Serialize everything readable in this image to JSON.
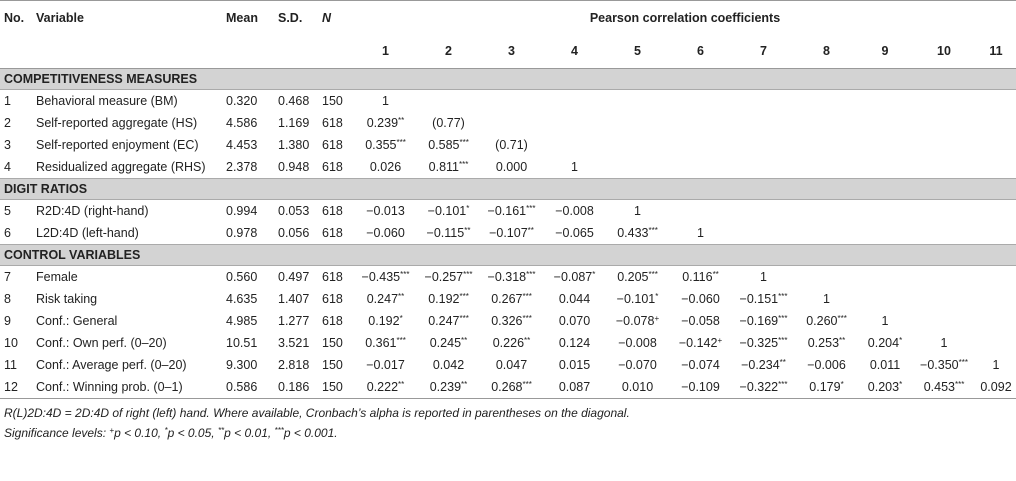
{
  "header": {
    "no": "No.",
    "variable": "Variable",
    "mean": "Mean",
    "sd": "S.D.",
    "n": "N",
    "pearson": "Pearson correlation coefficients",
    "cols": [
      "1",
      "2",
      "3",
      "4",
      "5",
      "6",
      "7",
      "8",
      "9",
      "10",
      "11"
    ]
  },
  "sections": [
    {
      "title": "COMPETITIVENESS MEASURES",
      "rows": [
        {
          "no": "1",
          "var": "Behavioral measure (BM)",
          "mean": "0.320",
          "sd": "0.468",
          "n": "150",
          "c": [
            "1",
            "",
            "",
            "",
            "",
            "",
            "",
            "",
            "",
            "",
            ""
          ]
        },
        {
          "no": "2",
          "var": "Self-reported aggregate (HS)",
          "mean": "4.586",
          "sd": "1.169",
          "n": "618",
          "c": [
            "0.239**",
            "(0.77)",
            "",
            "",
            "",
            "",
            "",
            "",
            "",
            "",
            ""
          ]
        },
        {
          "no": "3",
          "var": "Self-reported enjoyment (EC)",
          "mean": "4.453",
          "sd": "1.380",
          "n": "618",
          "c": [
            "0.355***",
            "0.585***",
            "(0.71)",
            "",
            "",
            "",
            "",
            "",
            "",
            "",
            ""
          ]
        },
        {
          "no": "4",
          "var": "Residualized aggregate (RHS)",
          "mean": "2.378",
          "sd": "0.948",
          "n": "618",
          "c": [
            "0.026",
            "0.811***",
            "0.000",
            "1",
            "",
            "",
            "",
            "",
            "",
            "",
            ""
          ]
        }
      ]
    },
    {
      "title": "DIGIT RATIOS",
      "rows": [
        {
          "no": "5",
          "var": "R2D:4D (right-hand)",
          "mean": "0.994",
          "sd": "0.053",
          "n": "618",
          "c": [
            "−0.013",
            "−0.101*",
            "−0.161***",
            "−0.008",
            "1",
            "",
            "",
            "",
            "",
            "",
            ""
          ]
        },
        {
          "no": "6",
          "var": "L2D:4D (left-hand)",
          "mean": "0.978",
          "sd": "0.056",
          "n": "618",
          "c": [
            "−0.060",
            "−0.115**",
            "−0.107**",
            "−0.065",
            "0.433***",
            "1",
            "",
            "",
            "",
            "",
            ""
          ]
        }
      ]
    },
    {
      "title": "CONTROL VARIABLES",
      "rows": [
        {
          "no": "7",
          "var": "Female",
          "mean": "0.560",
          "sd": "0.497",
          "n": "618",
          "c": [
            "−0.435***",
            "−0.257***",
            "−0.318***",
            "−0.087*",
            "0.205***",
            "0.116**",
            "1",
            "",
            "",
            "",
            ""
          ]
        },
        {
          "no": "8",
          "var": "Risk taking",
          "mean": "4.635",
          "sd": "1.407",
          "n": "618",
          "c": [
            "0.247**",
            "0.192***",
            "0.267***",
            "0.044",
            "−0.101*",
            "−0.060",
            "−0.151***",
            "1",
            "",
            "",
            ""
          ]
        },
        {
          "no": "9",
          "var": "Conf.: General",
          "mean": "4.985",
          "sd": "1.277",
          "n": "618",
          "c": [
            "0.192*",
            "0.247***",
            "0.326***",
            "0.070",
            "−0.078+",
            "−0.058",
            "−0.169***",
            "0.260***",
            "1",
            "",
            ""
          ]
        },
        {
          "no": "10",
          "var": "Conf.: Own perf. (0–20)",
          "mean": "10.51",
          "sd": "3.521",
          "n": "150",
          "c": [
            "0.361***",
            "0.245**",
            "0.226**",
            "0.124",
            "−0.008",
            "−0.142+",
            "−0.325***",
            "0.253**",
            "0.204*",
            "1",
            ""
          ]
        },
        {
          "no": "11",
          "var": "Conf.: Average perf. (0–20)",
          "mean": "9.300",
          "sd": "2.818",
          "n": "150",
          "c": [
            "−0.017",
            "0.042",
            "0.047",
            "0.015",
            "−0.070",
            "−0.074",
            "−0.234**",
            "−0.006",
            "0.011",
            "−0.350***",
            "1"
          ]
        },
        {
          "no": "12",
          "var": "Conf.: Winning prob. (0–1)",
          "mean": "0.586",
          "sd": "0.186",
          "n": "150",
          "c": [
            "0.222**",
            "0.239**",
            "0.268***",
            "0.087",
            "0.010",
            "−0.109",
            "−0.322***",
            "0.179*",
            "0.203*",
            "0.453***",
            "0.092"
          ]
        }
      ]
    }
  ],
  "notes": {
    "line1": "R(L)2D:4D = 2D:4D of right (left) hand. Where available, Cronbach’s alpha is reported in parentheses on the diagonal.",
    "line2": "Significance levels: +p < 0.10, *p < 0.05, **p < 0.01, ***p < 0.001."
  }
}
